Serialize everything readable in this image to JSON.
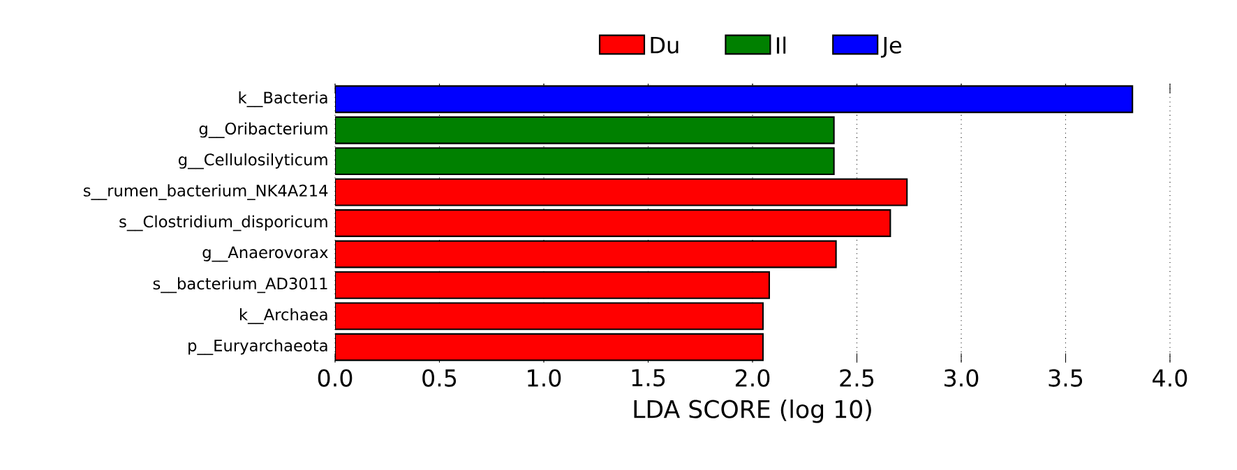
{
  "chart_data": {
    "type": "bar",
    "orientation": "horizontal",
    "xlabel": "LDA SCORE (log 10)",
    "categories": [
      "k__Bacteria",
      "g__Oribacterium",
      "g__Cellulosilyticum",
      "s__rumen_bacterium_NK4A214",
      "s__Clostridium_disporicum",
      "g__Anaerovorax",
      "s__bacterium_AD3011",
      "k__Archaea",
      "p__Euryarchaeota"
    ],
    "series": [
      {
        "name": "Du",
        "color": "#ff0000",
        "values": [
          null,
          null,
          null,
          2.74,
          2.66,
          2.4,
          2.08,
          2.05,
          2.05
        ]
      },
      {
        "name": "Il",
        "color": "#008000",
        "values": [
          null,
          2.39,
          2.39,
          null,
          null,
          null,
          null,
          null,
          null
        ]
      },
      {
        "name": "Je",
        "color": "#0000ff",
        "values": [
          3.82,
          null,
          null,
          null,
          null,
          null,
          null,
          null,
          null
        ]
      }
    ],
    "xlim": [
      0,
      4.0
    ],
    "xticks": [
      {
        "value": 0,
        "label": "0.0"
      },
      {
        "value": 0.5,
        "label": "0.5"
      },
      {
        "value": 1.0,
        "label": "1.0"
      },
      {
        "value": 1.5,
        "label": "1.5"
      },
      {
        "value": 2.0,
        "label": "2.0"
      },
      {
        "value": 2.5,
        "label": "2.5"
      },
      {
        "value": 3.0,
        "label": "3.0"
      },
      {
        "value": 3.5,
        "label": "3.5"
      },
      {
        "value": 4.0,
        "label": "4.0"
      }
    ],
    "grid": "x",
    "legend": "top"
  }
}
